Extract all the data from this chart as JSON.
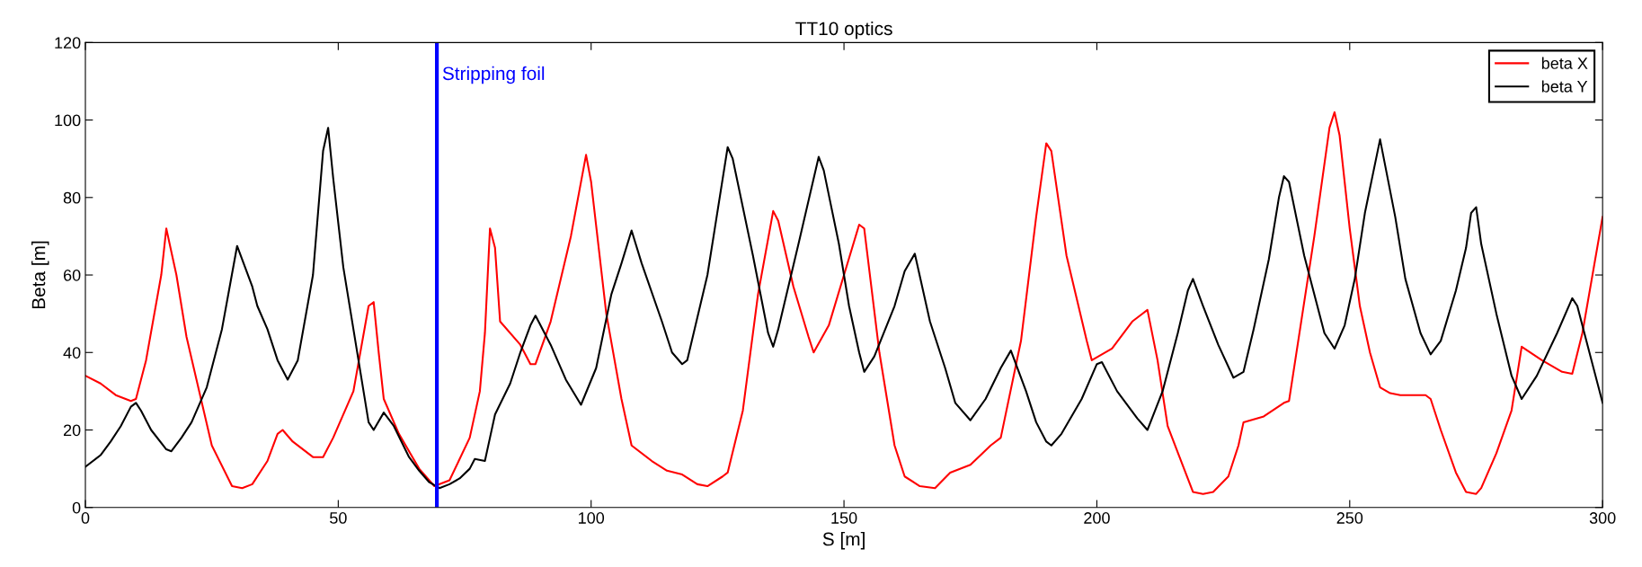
{
  "chart_data": {
    "type": "line",
    "title": "TT10 optics",
    "xlabel": "S [m]",
    "ylabel": "Beta [m]",
    "xlim": [
      0,
      300
    ],
    "xticks": [
      0,
      50,
      100,
      150,
      200,
      250,
      300
    ],
    "ylim": [
      0,
      120
    ],
    "yticks": [
      0,
      20,
      40,
      60,
      80,
      100,
      120
    ],
    "grid": false,
    "legend": "top right",
    "marker": "none",
    "line_style": "solid",
    "ref_lines": [
      {
        "axis": "x",
        "value": 69.5,
        "label": "Stripping foil",
        "color": "#0000ff",
        "line_style": "solid"
      }
    ],
    "series": [
      {
        "name": "beta X",
        "color": "#ff0000",
        "x": [
          0,
          3,
          6,
          9,
          10,
          12,
          15,
          16,
          17,
          18,
          20,
          25,
          29,
          31,
          33,
          36,
          38,
          39,
          41,
          45,
          47,
          49,
          53,
          56,
          57,
          58,
          59,
          62,
          66,
          69,
          72,
          76,
          78,
          79,
          80,
          81,
          82,
          86,
          88,
          89,
          92,
          96,
          99,
          100,
          103,
          106,
          108,
          112,
          115,
          118,
          121,
          123,
          126,
          127,
          130,
          133,
          136,
          137,
          140,
          143,
          144,
          147,
          150,
          153,
          154,
          157,
          160,
          162,
          165,
          168,
          171,
          175,
          179,
          181,
          185,
          188,
          190,
          191,
          194,
          198,
          199,
          203,
          207,
          210,
          212,
          214,
          219,
          221,
          223,
          226,
          228,
          229,
          233,
          237,
          238,
          243,
          246,
          247,
          248,
          250,
          252,
          254,
          256,
          258,
          260,
          265,
          266,
          268,
          271,
          273,
          275,
          276,
          279,
          282,
          284,
          288,
          292,
          294,
          296,
          300
        ],
        "values": [
          34,
          32,
          29,
          27.5,
          28,
          38,
          60,
          72,
          66,
          60,
          44,
          16,
          5.5,
          5,
          6,
          12,
          19,
          20,
          17,
          13,
          13,
          18,
          30,
          52,
          53,
          40,
          28,
          19,
          10,
          5.5,
          7,
          18,
          30,
          45,
          72,
          67,
          48,
          42,
          37,
          37,
          48,
          70,
          91,
          84,
          50,
          28,
          16,
          12,
          9.5,
          8.5,
          6,
          5.5,
          8,
          9,
          25,
          55,
          76.5,
          74,
          57,
          44,
          40,
          47,
          60,
          73,
          72,
          40,
          16,
          8,
          5.5,
          5,
          9,
          11,
          16,
          18,
          43,
          75,
          94,
          92,
          65,
          43,
          38,
          41,
          48,
          51,
          38,
          21,
          4,
          3.5,
          4,
          8,
          16,
          22,
          23.5,
          27,
          27.5,
          70,
          98,
          102,
          96,
          72,
          52,
          40,
          31,
          29.5,
          29,
          29,
          28,
          20,
          9,
          4,
          3.5,
          5,
          14,
          25,
          41.5,
          38,
          35,
          34.5,
          45,
          75
        ]
      },
      {
        "name": "beta Y",
        "color": "#000000",
        "x": [
          0,
          3,
          5,
          7,
          9,
          10,
          11,
          13,
          16,
          17,
          19,
          21,
          24,
          27,
          30,
          33,
          34,
          36,
          38,
          40,
          42,
          45,
          47,
          48,
          49,
          51,
          54,
          56,
          57,
          59,
          61,
          64,
          66,
          68,
          70,
          72,
          74,
          76,
          77,
          79,
          80,
          81,
          84,
          86,
          88,
          89,
          92,
          95,
          98,
          101,
          104,
          106,
          108,
          110,
          114,
          116,
          118,
          119,
          123,
          127,
          128,
          132,
          135,
          136,
          137,
          141,
          145,
          146,
          149,
          151,
          153,
          154,
          156,
          160,
          162,
          164,
          167,
          170,
          172,
          175,
          178,
          181,
          183,
          186,
          188,
          190,
          191,
          193,
          197,
          200,
          201,
          204,
          208,
          210,
          213,
          216,
          218,
          219,
          221,
          224,
          227,
          229,
          231,
          234,
          236,
          237,
          238,
          241,
          245,
          247,
          249,
          251,
          253,
          256,
          259,
          261,
          264,
          266,
          268,
          271,
          273,
          274,
          275,
          276,
          279,
          282,
          284,
          287,
          291,
          294,
          295,
          297,
          300
        ],
        "values": [
          10.5,
          13.5,
          17,
          21,
          26,
          27,
          25,
          20,
          15,
          14.5,
          18,
          22,
          31,
          46,
          67.5,
          57,
          52,
          46,
          38,
          33,
          38,
          60,
          92,
          98,
          85,
          62,
          38,
          22,
          20,
          24.5,
          21,
          13,
          9.5,
          6.5,
          5,
          6,
          7.5,
          10,
          12.5,
          12,
          18,
          24,
          32,
          40,
          47,
          49.5,
          42,
          33,
          26.5,
          36,
          55,
          63,
          71.5,
          63,
          48,
          40,
          37,
          38,
          60,
          93,
          90,
          65,
          45,
          41.5,
          46,
          68,
          90.5,
          87,
          68,
          52,
          40,
          35,
          39,
          52,
          61,
          65.5,
          48,
          36,
          27,
          22.5,
          28,
          36,
          40.5,
          30,
          22,
          17,
          16,
          19,
          28,
          37,
          37.5,
          30,
          23,
          20,
          30,
          45,
          56,
          59,
          52,
          42,
          33.5,
          35,
          46,
          64,
          80,
          85.5,
          84,
          65,
          45,
          41,
          47,
          59,
          76,
          95,
          75,
          59,
          45,
          39.5,
          43,
          56,
          67,
          76,
          77.5,
          68,
          50,
          34,
          28,
          34,
          45,
          54,
          52,
          42,
          27
        ]
      }
    ]
  }
}
